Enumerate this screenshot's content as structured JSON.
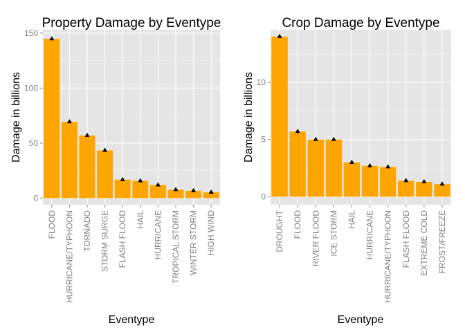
{
  "colors": {
    "panel_background": "#E5E5E5",
    "grid_major": "#FFFFFF",
    "grid_minor": "#F2F2F2",
    "bar_fill": "#FFA500",
    "marker": "#000000",
    "tick_label": "#7F7F7F"
  },
  "chart_data": [
    {
      "type": "bar",
      "title": "Property Damage by Eventype",
      "xlabel": "Eventype",
      "ylabel": "Damage in billions",
      "ylim": [
        -6,
        153
      ],
      "yticks": [
        0,
        50,
        100,
        150
      ],
      "grid": true,
      "legend": "none",
      "marker": "triangle at top of each bar",
      "categories": [
        "FLOOD",
        "HURRICANE/TYPHOON",
        "TORNADO",
        "STORM SURGE",
        "FLASH FLOOD",
        "HAIL",
        "HURRICANE",
        "TROPICAL STORM",
        "WINTER STORM",
        "HIGH WIND"
      ],
      "values": [
        144.7,
        69.3,
        56.9,
        43.3,
        16.8,
        15.7,
        11.9,
        7.7,
        6.7,
        5.3
      ]
    },
    {
      "type": "bar",
      "title": "Crop Damage by Eventype",
      "xlabel": "Eventype",
      "ylabel": "Damage in billions",
      "ylim": [
        -0.7,
        14.6
      ],
      "yticks": [
        0,
        5,
        10
      ],
      "grid": true,
      "legend": "none",
      "marker": "triangle at top of each bar",
      "categories": [
        "DROUGHT",
        "FLOOD",
        "RIVER FLOOD",
        "ICE STORM",
        "HAIL",
        "HURRICANE",
        "HURRICANE/TYPHOON",
        "FLASH FLOOD",
        "EXTREME COLD",
        "FROST/FREEZE"
      ],
      "values": [
        14.0,
        5.7,
        5.0,
        5.0,
        3.0,
        2.7,
        2.6,
        1.4,
        1.3,
        1.1
      ]
    }
  ]
}
